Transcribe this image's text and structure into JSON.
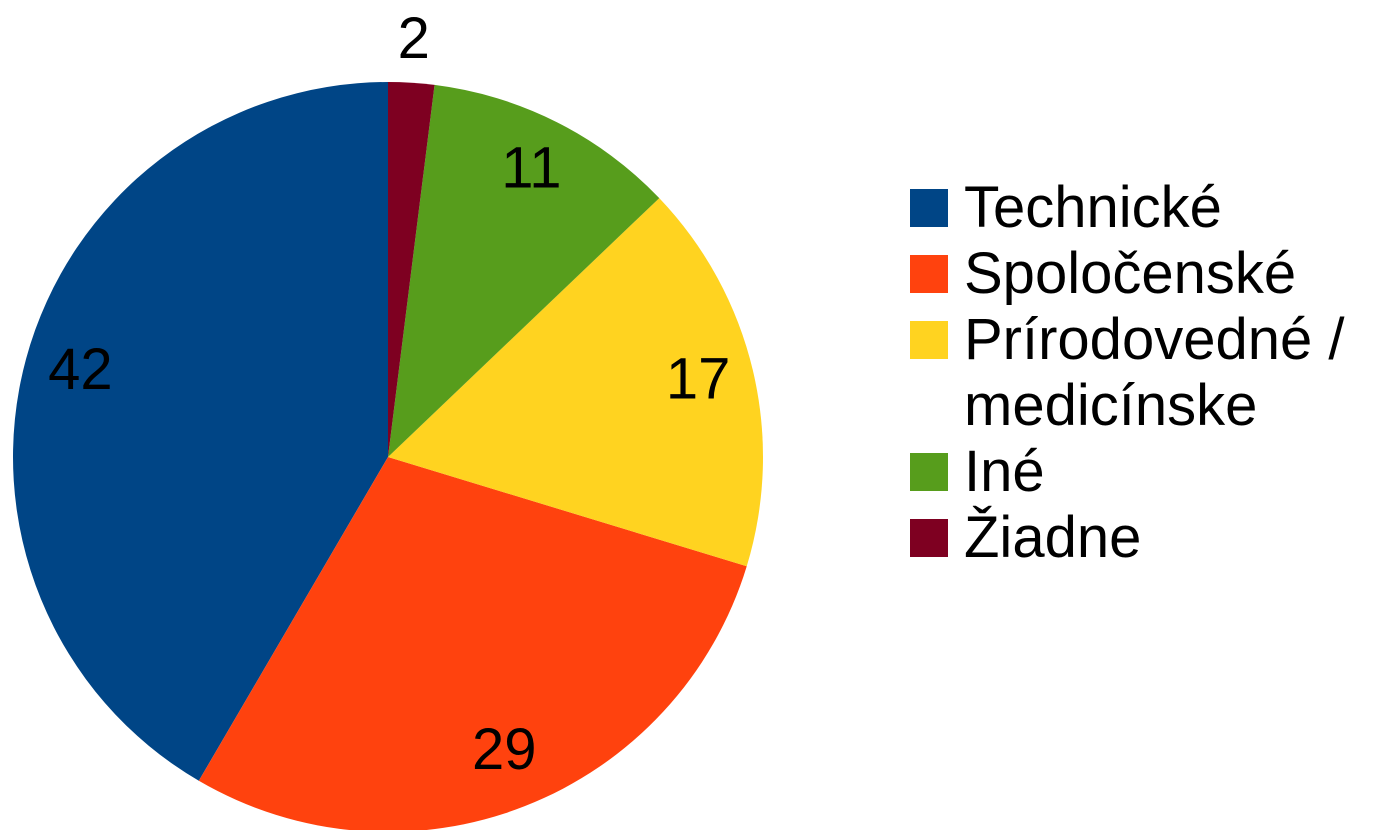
{
  "chart_data": {
    "type": "pie",
    "categories": [
      "Technické",
      "Spoločenské",
      "Prírodovedné / medicínske",
      "Iné",
      "Žiadne"
    ],
    "values": [
      42,
      29,
      17,
      11,
      2
    ],
    "colors": [
      "#004586",
      "#ff420e",
      "#ffd320",
      "#579d1c",
      "#7e0021"
    ],
    "legend": "right"
  }
}
